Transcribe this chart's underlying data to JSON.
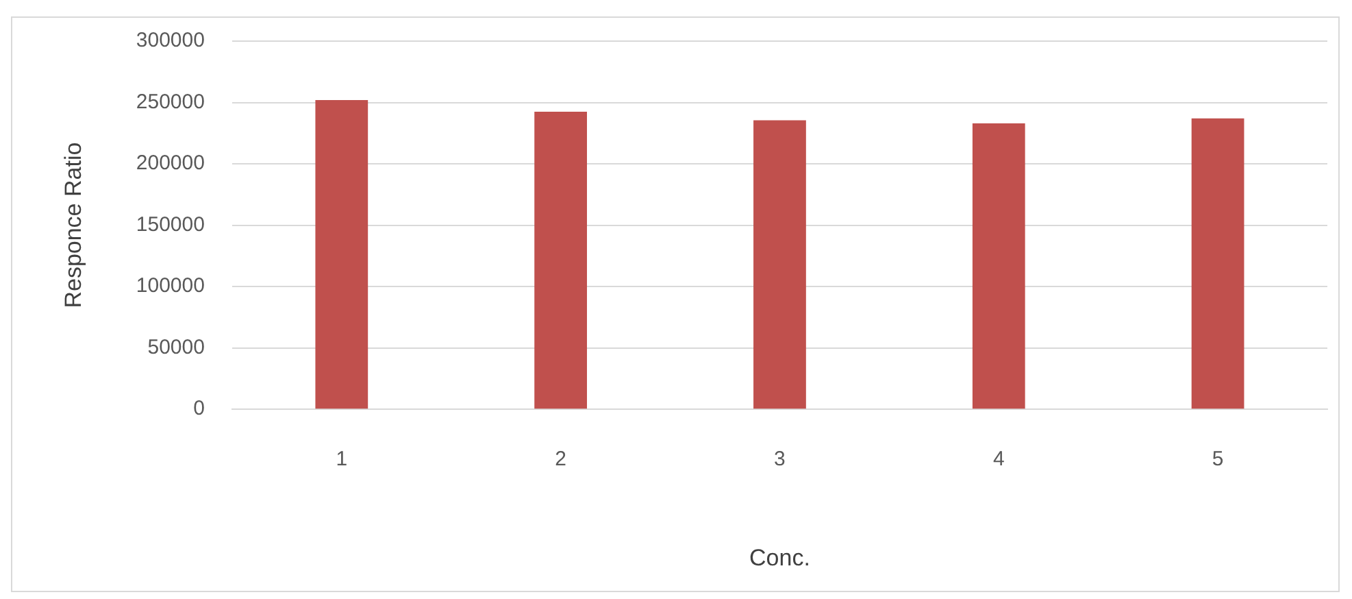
{
  "chart_data": {
    "type": "bar",
    "xlabel": "Conc.",
    "ylabel": "Responce Ratio",
    "categories": [
      "1",
      "2",
      "3",
      "4",
      "5"
    ],
    "values": [
      252000,
      242500,
      235500,
      233000,
      237000
    ],
    "color": "#c0504d",
    "ylim": [
      0,
      300000
    ],
    "yticks": [
      0,
      50000,
      100000,
      150000,
      200000,
      250000,
      300000
    ],
    "grid": "y"
  }
}
